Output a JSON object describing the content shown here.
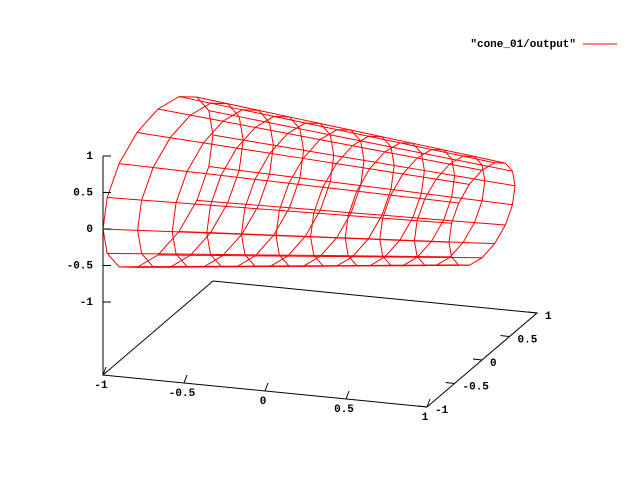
{
  "chart_data": {
    "type": "surface",
    "series": [
      {
        "name": "\"cone_01/output\"",
        "color": "#ff0000",
        "x": [
          -1,
          -0.8,
          -0.6,
          -0.4,
          -0.2,
          0,
          0.2,
          0.4,
          0.6,
          0.8,
          1
        ],
        "radius": [
          1,
          0.96,
          0.92,
          0.88,
          0.84,
          0.8,
          0.76,
          0.72,
          0.68,
          0.64,
          0.6
        ]
      }
    ],
    "xlim": [
      -1,
      1
    ],
    "xticks": [
      -1,
      -0.5,
      0,
      0.5,
      1
    ],
    "ylim": [
      -1,
      1
    ],
    "yticks": [
      -1,
      -0.5,
      0,
      0.5,
      1
    ],
    "zlim": [
      -1,
      1
    ],
    "zticks": [
      -1,
      -0.5,
      0,
      0.5,
      1
    ],
    "legend": "top-right",
    "grid": false
  }
}
